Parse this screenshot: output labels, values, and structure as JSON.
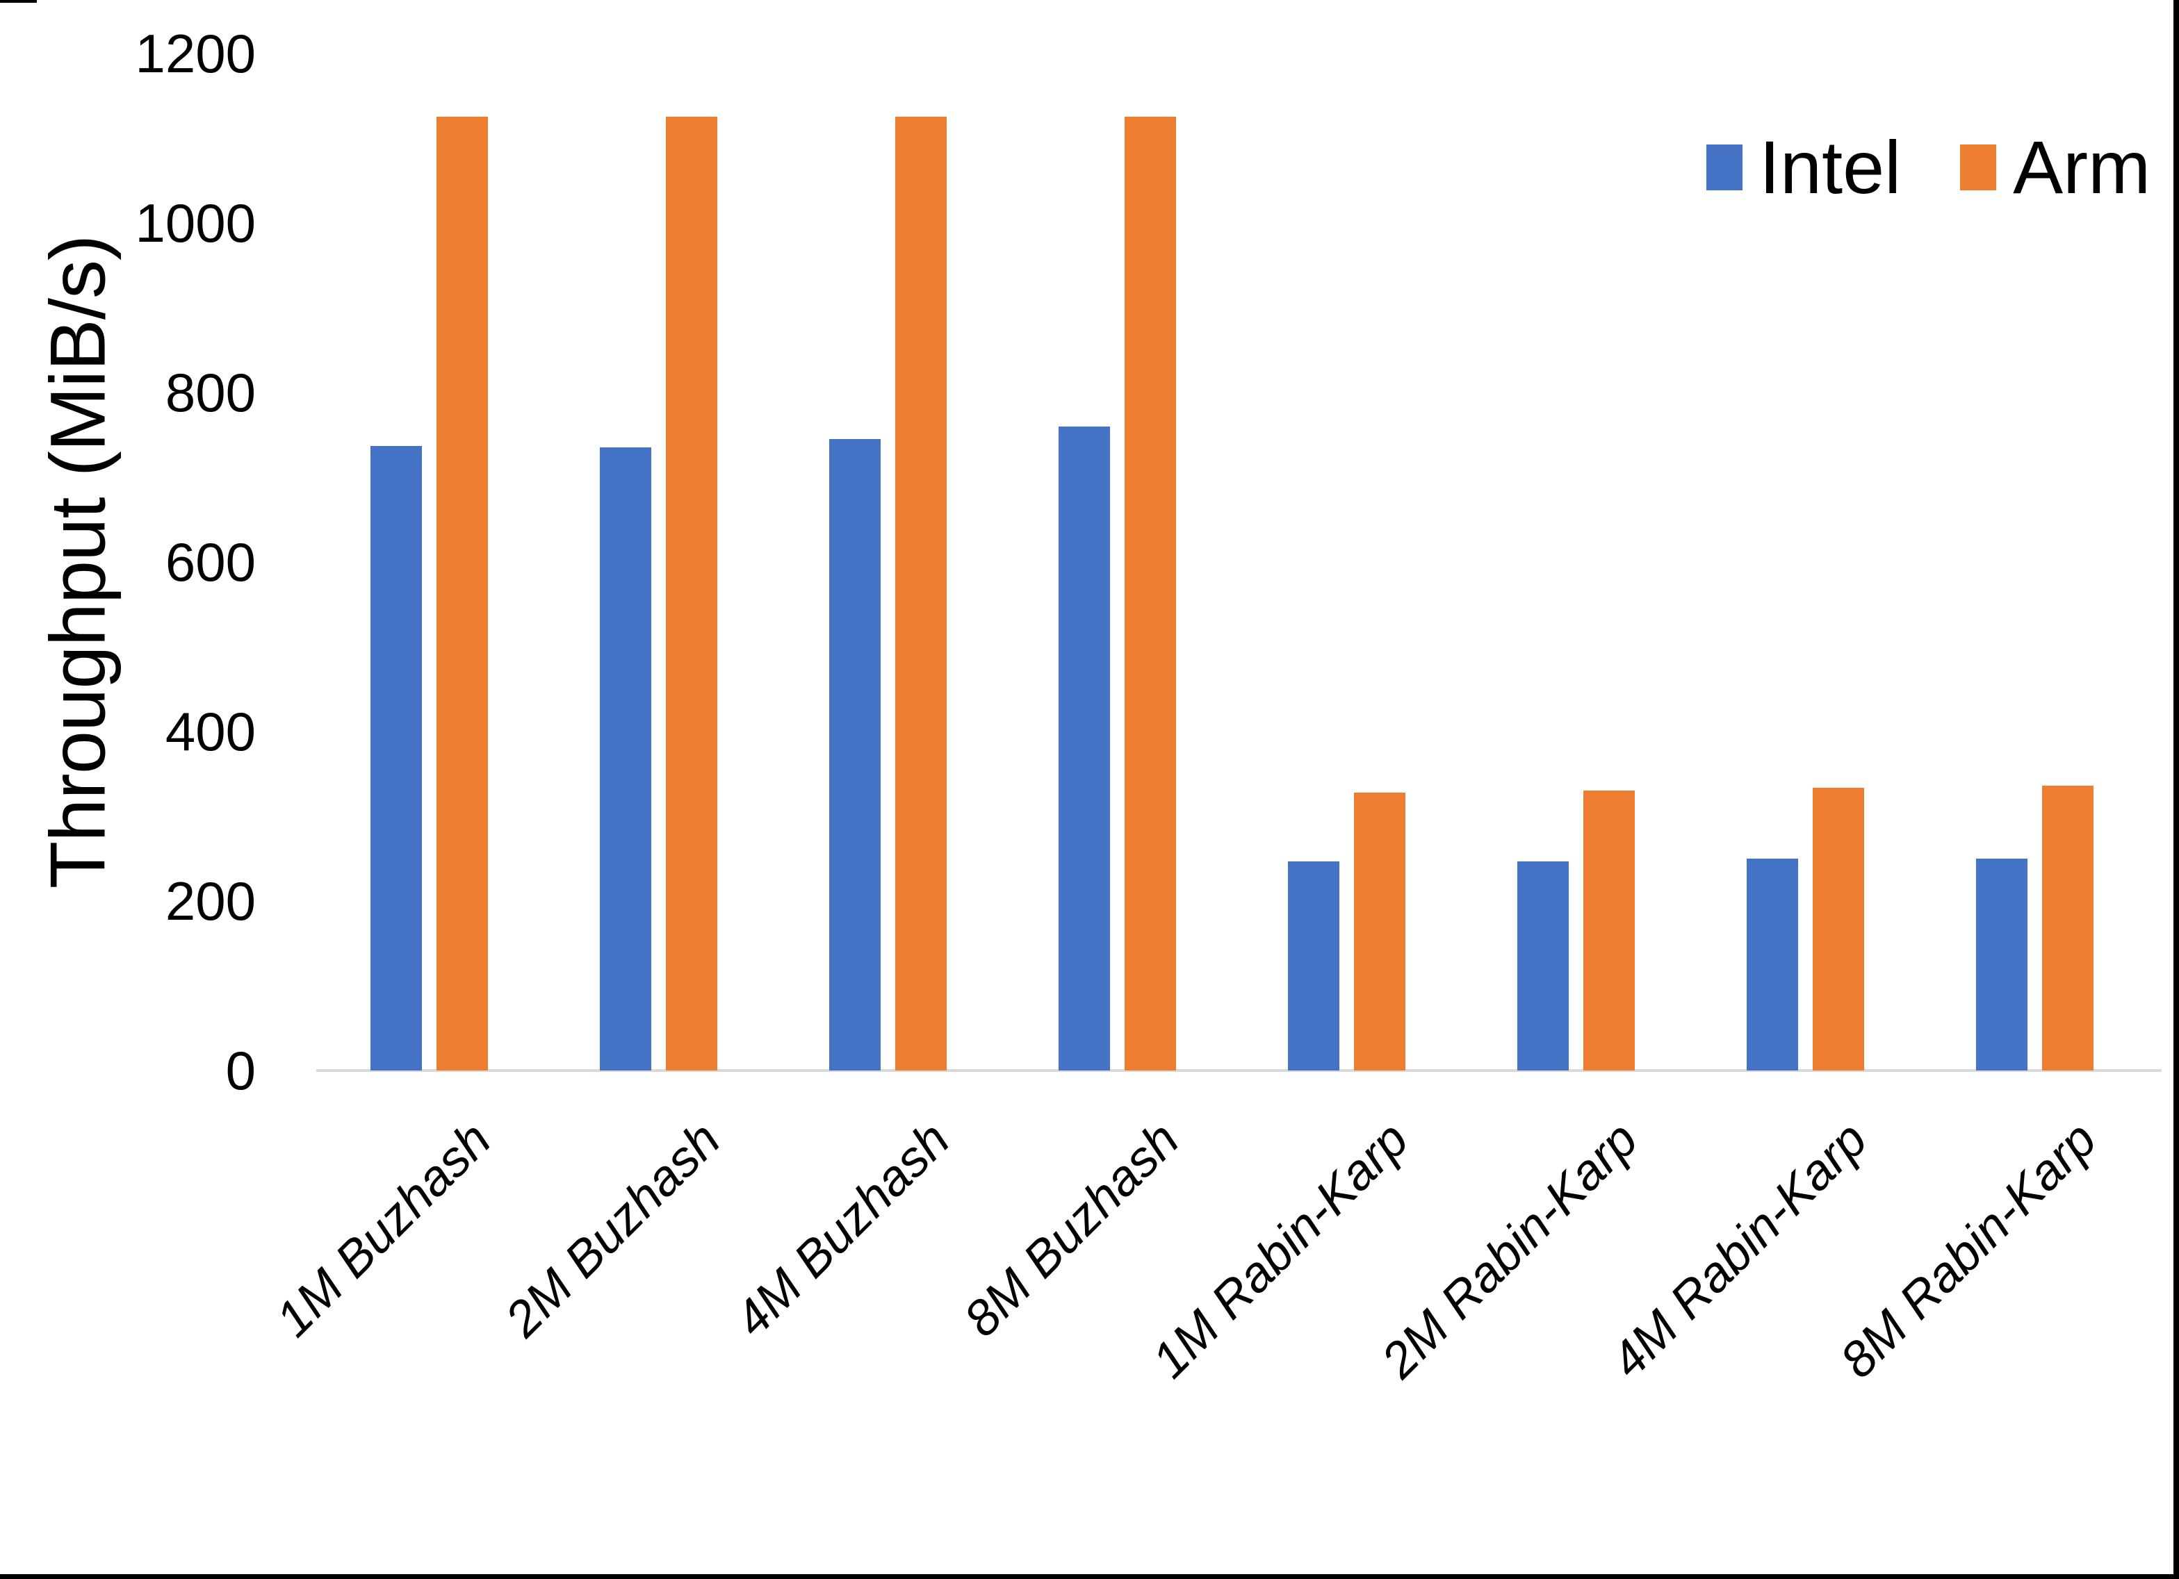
{
  "chart_data": {
    "type": "bar",
    "title": "",
    "xlabel": "",
    "ylabel": "Throughput (MiB/s)",
    "categories": [
      "1M Buzhash",
      "2M Buzhash",
      "4M Buzhash",
      "8M Buzhash",
      "1M Rabin-Karp",
      "2M Rabin-Karp",
      "4M Rabin-Karp",
      "8M Rabin-Karp"
    ],
    "series": [
      {
        "name": "Intel",
        "color": "#4472C4",
        "values": [
          737,
          735,
          745,
          760,
          247,
          247,
          250,
          250
        ]
      },
      {
        "name": "Arm",
        "color": "#ED7D31",
        "values": [
          1125,
          1125,
          1125,
          1125,
          328,
          330,
          334,
          336
        ]
      }
    ],
    "ylim": [
      0,
      1200
    ],
    "y_ticks": [
      0,
      200,
      400,
      600,
      800,
      1000,
      1200
    ],
    "grid": false,
    "legend_position": "top-right",
    "axis_line_color": "#D9D9D9"
  }
}
